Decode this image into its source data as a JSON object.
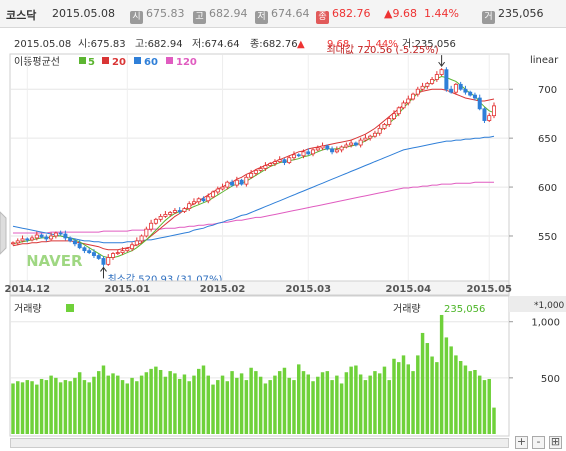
{
  "header": {
    "index_name": "코스닥",
    "date": "2015.05.08",
    "open": {
      "label": "시",
      "value": "675.83"
    },
    "high": {
      "label": "고",
      "value": "682.94"
    },
    "low": {
      "label": "저",
      "value": "674.64"
    },
    "close": {
      "label": "종",
      "value": "682.76"
    },
    "change": "9.68",
    "change_pct": "1.44%",
    "volume": {
      "label": "거",
      "value": "235,056"
    }
  },
  "info_line": {
    "date": "2015.05.08",
    "open": "시:675.83",
    "high": "고:682.94",
    "low": "저:674.64",
    "close": "종:682.76",
    "change": "9.68",
    "change_pct": "1.44%",
    "volume": "거:235,056"
  },
  "colors": {
    "up": "#e33333",
    "down": "#2f7fd8",
    "ma5": "#5cb531",
    "ma20": "#d93535",
    "ma60": "#2f7fd8",
    "ma120": "#e05cc0",
    "volume": "#6fd13a"
  },
  "chart_data": [
    {
      "type": "line",
      "title": "",
      "scale": "linear",
      "ma_legend": {
        "title": "이동평균선",
        "items": [
          "5",
          "20",
          "60",
          "120"
        ]
      },
      "x_ticks": [
        "2014.12",
        "2015.01",
        "2015.02",
        "2015.03",
        "2015.04",
        "2015.05"
      ],
      "yticks": [
        550,
        600,
        650,
        700
      ],
      "ylim": [
        505,
        735
      ],
      "annotations": {
        "max": {
          "text": "최대값 720.56 (-5.25%)",
          "value": 720.56
        },
        "min": {
          "text": "최소값 520.93 (31.07%)",
          "value": 520.93
        }
      },
      "watermark": "NAVER",
      "close_values": [
        543,
        545,
        547,
        546,
        548,
        551,
        549,
        547,
        550,
        553,
        552,
        548,
        545,
        542,
        538,
        535,
        533,
        530,
        527,
        521,
        528,
        532,
        533,
        535,
        537,
        541,
        545,
        550,
        557,
        563,
        567,
        570,
        572,
        574,
        576,
        575,
        578,
        583,
        585,
        588,
        586,
        590,
        595,
        598,
        600,
        605,
        602,
        607,
        603,
        610,
        614,
        617,
        619,
        622,
        624,
        626,
        628,
        625,
        630,
        633,
        632,
        636,
        634,
        638,
        640,
        642,
        639,
        636,
        638,
        641,
        643,
        645,
        643,
        648,
        650,
        652,
        655,
        660,
        664,
        670,
        675,
        681,
        686,
        690,
        695,
        700,
        703,
        706,
        710,
        715,
        720,
        700,
        697,
        705,
        700,
        697,
        694,
        691,
        680,
        668,
        673,
        683
      ],
      "ma5_values": [
        542,
        543,
        544,
        545,
        546,
        547,
        548,
        548,
        549,
        550,
        550,
        549,
        548,
        546,
        544,
        541,
        538,
        535,
        532,
        529,
        528,
        528,
        529,
        531,
        533,
        535,
        538,
        542,
        546,
        551,
        556,
        561,
        566,
        570,
        573,
        575,
        576,
        578,
        580,
        582,
        584,
        586,
        589,
        592,
        595,
        598,
        601,
        603,
        604,
        606,
        609,
        612,
        615,
        618,
        621,
        623,
        625,
        626,
        627,
        628,
        629,
        631,
        632,
        634,
        636,
        638,
        639,
        639,
        639,
        640,
        641,
        642,
        643,
        645,
        647,
        650,
        653,
        657,
        661,
        665,
        670,
        675,
        681,
        686,
        691,
        696,
        700,
        704,
        707,
        711,
        713,
        712,
        710,
        708,
        704,
        700,
        696,
        693,
        687,
        682,
        678,
        676
      ],
      "ma20_values": [
        540,
        541,
        542,
        542,
        543,
        543,
        544,
        544,
        545,
        545,
        545,
        545,
        545,
        544,
        543,
        542,
        541,
        540,
        539,
        537,
        536,
        536,
        536,
        537,
        538,
        539,
        541,
        543,
        546,
        550,
        554,
        558,
        562,
        566,
        570,
        573,
        577,
        580,
        583,
        586,
        589,
        592,
        595,
        598,
        600,
        603,
        605,
        608,
        610,
        613,
        615,
        618,
        620,
        622,
        624,
        626,
        628,
        630,
        632,
        634,
        636,
        637,
        639,
        640,
        641,
        642,
        643,
        644,
        645,
        646,
        647,
        648,
        650,
        652,
        654,
        657,
        660,
        664,
        668,
        672,
        676,
        680,
        684,
        688,
        692,
        696,
        698,
        699,
        700,
        700,
        700,
        699,
        697,
        695,
        693,
        691,
        690,
        689,
        688,
        688,
        689,
        690
      ],
      "ma60_values": [
        560,
        559,
        558,
        557,
        556,
        555,
        554,
        553,
        552,
        551,
        550,
        549,
        548,
        547,
        546,
        545,
        545,
        544,
        544,
        543,
        543,
        543,
        543,
        543,
        544,
        544,
        545,
        545,
        546,
        546,
        547,
        548,
        549,
        550,
        551,
        552,
        553,
        554,
        556,
        557,
        558,
        560,
        561,
        563,
        564,
        566,
        567,
        569,
        571,
        572,
        574,
        576,
        578,
        580,
        582,
        584,
        586,
        588,
        590,
        592,
        594,
        596,
        598,
        600,
        602,
        604,
        606,
        608,
        610,
        612,
        614,
        616,
        618,
        620,
        622,
        624,
        626,
        628,
        630,
        632,
        634,
        636,
        638,
        639,
        640,
        641,
        642,
        643,
        644,
        645,
        646,
        647,
        647,
        648,
        648,
        649,
        649,
        650,
        650,
        651,
        651,
        652
      ],
      "ma120_values": [
        553,
        553,
        553,
        553,
        553,
        553,
        553,
        553,
        554,
        554,
        554,
        554,
        554,
        554,
        554,
        554,
        554,
        554,
        554,
        555,
        555,
        555,
        555,
        555,
        555,
        556,
        556,
        556,
        556,
        557,
        557,
        557,
        558,
        558,
        558,
        559,
        559,
        560,
        560,
        561,
        561,
        562,
        562,
        563,
        564,
        564,
        565,
        566,
        566,
        567,
        568,
        569,
        569,
        570,
        571,
        572,
        573,
        574,
        575,
        576,
        577,
        578,
        579,
        580,
        581,
        582,
        583,
        584,
        585,
        586,
        587,
        588,
        589,
        590,
        591,
        592,
        593,
        594,
        595,
        596,
        597,
        598,
        599,
        599,
        600,
        600,
        601,
        601,
        602,
        602,
        603,
        603,
        603,
        604,
        604,
        604,
        604,
        605,
        605,
        605,
        605,
        605
      ]
    },
    {
      "type": "bar",
      "title": "거래량",
      "scale_label": "*1,000",
      "yticks": [
        500,
        1000
      ],
      "ylim": [
        0,
        1220
      ],
      "last_value_label": "거래량",
      "last_value": "235,056",
      "values": [
        450,
        470,
        460,
        480,
        470,
        440,
        490,
        480,
        520,
        500,
        460,
        480,
        470,
        500,
        550,
        480,
        460,
        510,
        560,
        610,
        520,
        540,
        520,
        480,
        450,
        500,
        470,
        520,
        550,
        580,
        600,
        570,
        510,
        560,
        540,
        490,
        530,
        470,
        520,
        580,
        610,
        520,
        440,
        480,
        520,
        470,
        560,
        500,
        540,
        480,
        590,
        560,
        510,
        450,
        480,
        520,
        560,
        590,
        500,
        480,
        620,
        560,
        530,
        470,
        510,
        550,
        560,
        480,
        520,
        450,
        550,
        600,
        610,
        530,
        480,
        520,
        560,
        540,
        600,
        480,
        670,
        640,
        700,
        620,
        560,
        700,
        900,
        810,
        690,
        640,
        1060,
        860,
        780,
        700,
        650,
        610,
        560,
        570,
        520,
        480,
        490,
        235
      ]
    }
  ],
  "toolbar": {
    "plus": "+",
    "minus": "-",
    "reset": "⊞"
  }
}
